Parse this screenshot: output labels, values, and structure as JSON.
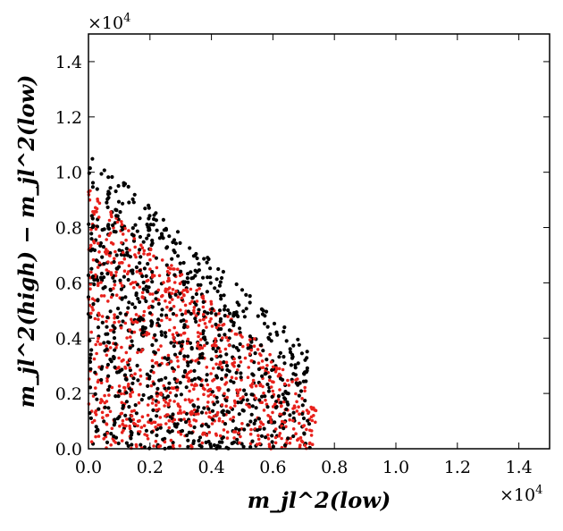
{
  "chart_data": {
    "type": "scatter",
    "xlabel": "m_jl^2(low)",
    "ylabel": "m_jl^2(high) − m_jl^2(low)",
    "x_multiplier": "×10",
    "x_multiplier_exp": "4",
    "y_multiplier": "×10",
    "y_multiplier_exp": "4",
    "xlim": [
      0.0,
      1.5
    ],
    "ylim": [
      0.0,
      1.5
    ],
    "xticks": [
      "0.0",
      "0.2",
      "0.4",
      "0.6",
      "0.8",
      "1.0",
      "1.2",
      "1.4"
    ],
    "yticks": [
      "0.0",
      "0.2",
      "0.4",
      "0.6",
      "0.8",
      "1.0",
      "1.2",
      "1.4"
    ],
    "grid": false,
    "series": [
      {
        "name": "black",
        "color": "#000000",
        "region": "triangle bounded by x>=0, y>=0, x+y<=1.08 (x10^4 units); approx. 900 points",
        "n_points": 900,
        "x_range": [
          0.0,
          0.72
        ],
        "y_range": [
          0.0,
          1.08
        ],
        "sum_max": 1.08
      },
      {
        "name": "red",
        "color": "#e8211c",
        "region": "triangle bounded by x>=0, y>=0, x+y<=0.94 (x10^4 units); approx. 900 points",
        "n_points": 900,
        "x_range": [
          0.0,
          0.74
        ],
        "y_range": [
          0.0,
          0.94
        ],
        "sum_max": 0.94
      }
    ]
  }
}
